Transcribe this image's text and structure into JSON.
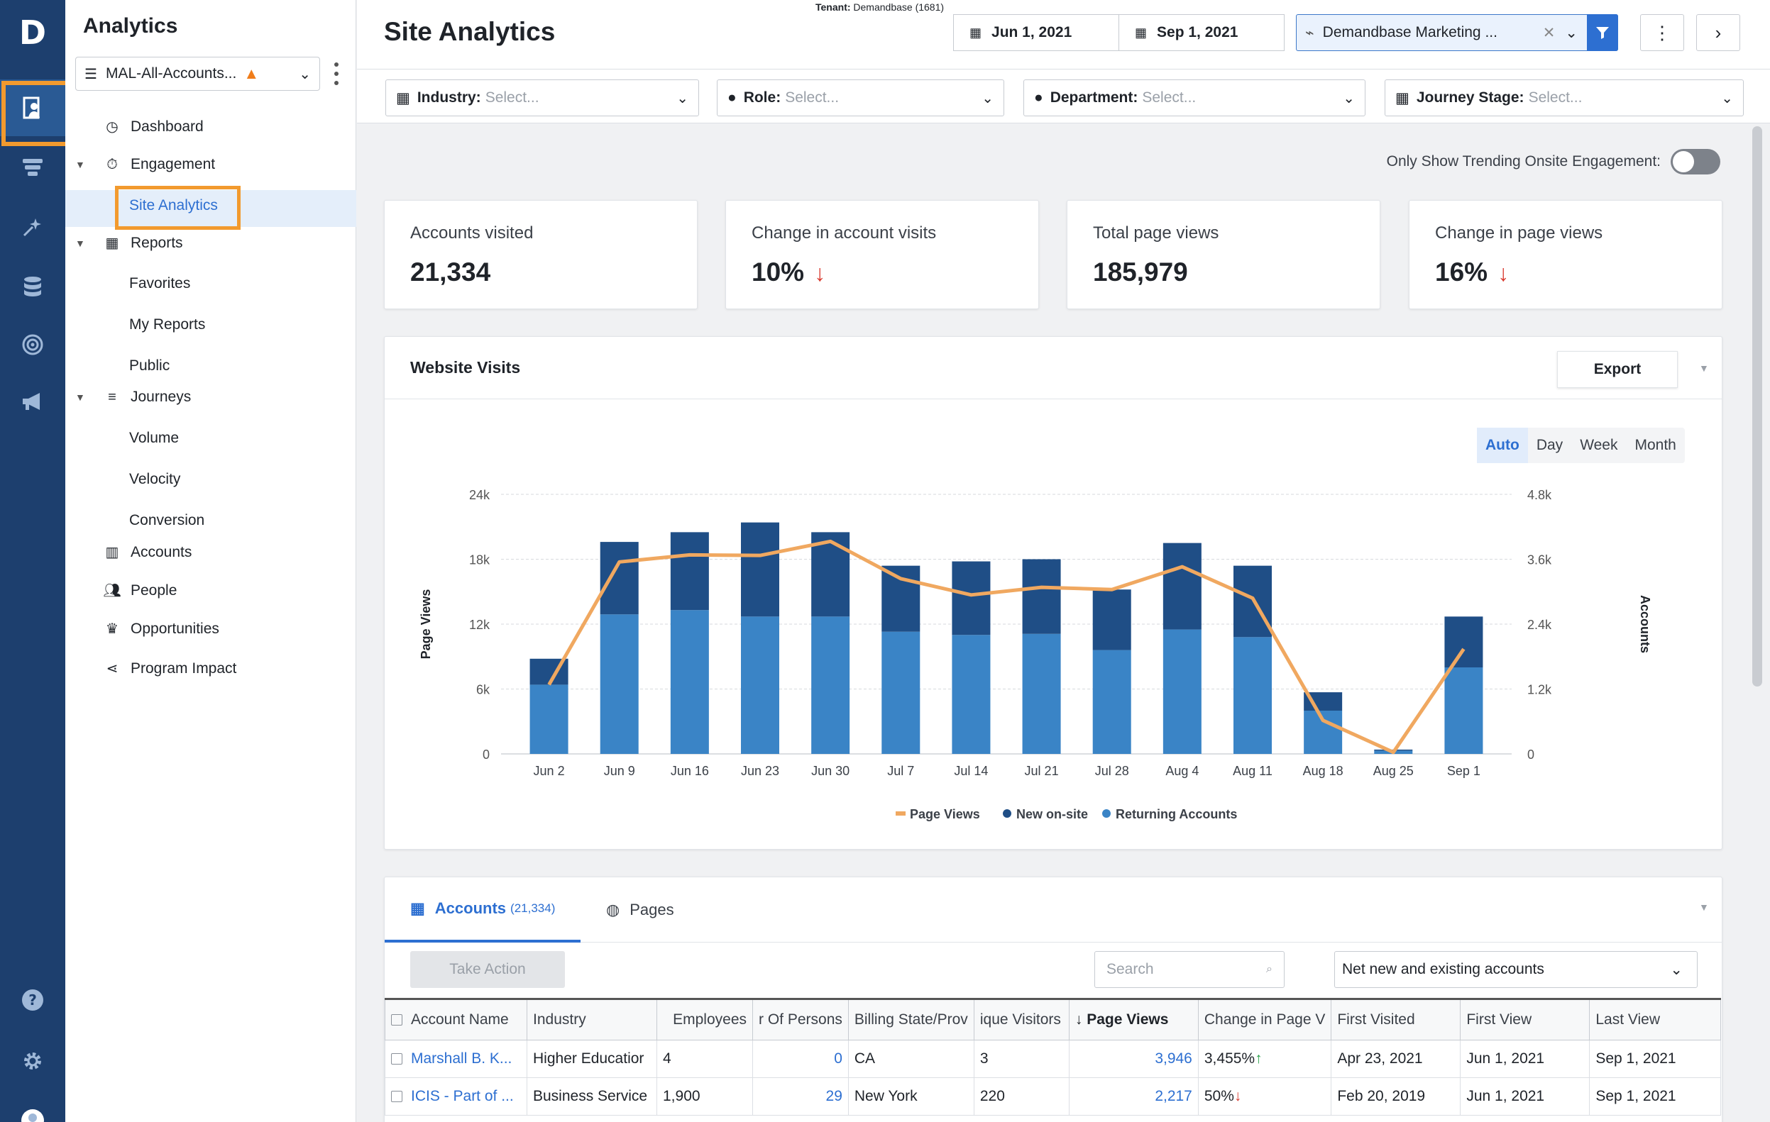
{
  "rail": {
    "logo": "D",
    "items": [
      "analytics-icon",
      "funnel-icon",
      "sparkle-icon",
      "database-icon",
      "target-icon",
      "megaphone-icon"
    ],
    "bottom": [
      "help-icon",
      "gear-icon",
      "user-avatar-icon"
    ]
  },
  "nav": {
    "title": "Analytics",
    "account_list": "MAL-All-Accounts...",
    "items": {
      "dashboard": "Dashboard",
      "engagement": "Engagement",
      "site_analytics": "Site Analytics",
      "reports": "Reports",
      "favorites": "Favorites",
      "my_reports": "My Reports",
      "public": "Public",
      "journeys": "Journeys",
      "volume": "Volume",
      "velocity": "Velocity",
      "conversion": "Conversion",
      "accounts": "Accounts",
      "people": "People",
      "opportunities": "Opportunities",
      "program_impact": "Program Impact"
    }
  },
  "header": {
    "title": "Site Analytics",
    "tenant_label": "Tenant:",
    "tenant_value": "Demandbase (1681)",
    "start_date": "Jun 1, 2021",
    "end_date": "Sep 1, 2021",
    "segment": "Demandbase Marketing ..."
  },
  "filters": {
    "industry": {
      "label": "Industry:",
      "placeholder": "Select..."
    },
    "role": {
      "label": "Role:",
      "placeholder": "Select..."
    },
    "department": {
      "label": "Department:",
      "placeholder": "Select..."
    },
    "journey_stage": {
      "label": "Journey Stage:",
      "placeholder": "Select..."
    }
  },
  "toggle": {
    "label": "Only Show Trending Onsite Engagement:",
    "on": false
  },
  "kpis": [
    {
      "label": "Accounts visited",
      "value": "21,334",
      "trend": ""
    },
    {
      "label": "Change in account visits",
      "value": "10%",
      "trend": "down"
    },
    {
      "label": "Total page views",
      "value": "185,979",
      "trend": ""
    },
    {
      "label": "Change in page views",
      "value": "16%",
      "trend": "down"
    }
  ],
  "website_visits": {
    "title": "Website Visits",
    "export_label": "Export",
    "granularity": [
      "Auto",
      "Day",
      "Week",
      "Month"
    ],
    "granularity_selected": "Auto"
  },
  "chart_data": {
    "type": "bar",
    "stacked": true,
    "categories": [
      "Jun 2",
      "Jun 9",
      "Jun 16",
      "Jun 23",
      "Jun 30",
      "Jul 7",
      "Jul 14",
      "Jul 21",
      "Jul 28",
      "Aug 4",
      "Aug 11",
      "Aug 18",
      "Aug 25",
      "Sep 1"
    ],
    "ylabel": "Page Views",
    "y2label": "Accounts",
    "ylim": [
      0,
      24000
    ],
    "y2lim": [
      0,
      4800
    ],
    "yticks": [
      "0",
      "6k",
      "12k",
      "18k",
      "24k"
    ],
    "y2ticks": [
      "0",
      "1.2k",
      "2.4k",
      "3.6k",
      "4.8k"
    ],
    "series": [
      {
        "name": "Returning Accounts",
        "type": "bar",
        "axis": "left",
        "color": "#3a84c6",
        "values": [
          6400,
          12900,
          13300,
          12700,
          12700,
          11300,
          11000,
          11100,
          9600,
          11500,
          10800,
          4000,
          300,
          8000
        ]
      },
      {
        "name": "New on-site",
        "type": "bar",
        "axis": "left",
        "color": "#1f4e86",
        "values": [
          2400,
          6700,
          7200,
          8700,
          7800,
          6100,
          6800,
          6900,
          5600,
          8000,
          6600,
          1700,
          100,
          4700
        ]
      },
      {
        "name": "Page Views",
        "type": "line",
        "axis": "right",
        "color": "#f0a860",
        "values": [
          1280,
          3550,
          3680,
          3670,
          3930,
          3240,
          2940,
          3080,
          3040,
          3460,
          2880,
          620,
          30,
          1940
        ]
      }
    ],
    "legend": [
      "Page Views",
      "New on-site",
      "Returning Accounts"
    ],
    "legend_colors": [
      "#f0a860",
      "#1f4e86",
      "#3a84c6"
    ],
    "legend_position": "bottom",
    "grid": true
  },
  "table_section": {
    "tab_accounts": "Accounts",
    "tab_accounts_count": "(21,334)",
    "tab_pages": "Pages",
    "take_action": "Take Action",
    "search_placeholder": "Search",
    "scope": "Net new and existing accounts",
    "columns": [
      "Account Name",
      "Industry",
      "Employees",
      "r Of Persons",
      "Billing State/Prov",
      "ique Visitors",
      "Page Views",
      "Change in Page V",
      "First Visited",
      "First View",
      "Last View"
    ],
    "rows": [
      {
        "name": "Marshall B. K...",
        "industry": "Higher Educatior",
        "employees": "4",
        "persons": "0",
        "state": "CA",
        "visitors": "3",
        "page_views": "3,946",
        "change": "3,455%",
        "change_dir": "up",
        "first_visited": "Apr 23, 2021",
        "first_view": "Jun 1, 2021",
        "last_view": "Sep 1, 2021"
      },
      {
        "name": "ICIS - Part of ...",
        "industry": "Business Service",
        "employees": "1,900",
        "persons": "29",
        "state": "New York",
        "visitors": "220",
        "page_views": "2,217",
        "change": "50%",
        "change_dir": "down",
        "first_visited": "Feb 20, 2019",
        "first_view": "Jun 1, 2021",
        "last_view": "Sep 1, 2021"
      }
    ]
  }
}
